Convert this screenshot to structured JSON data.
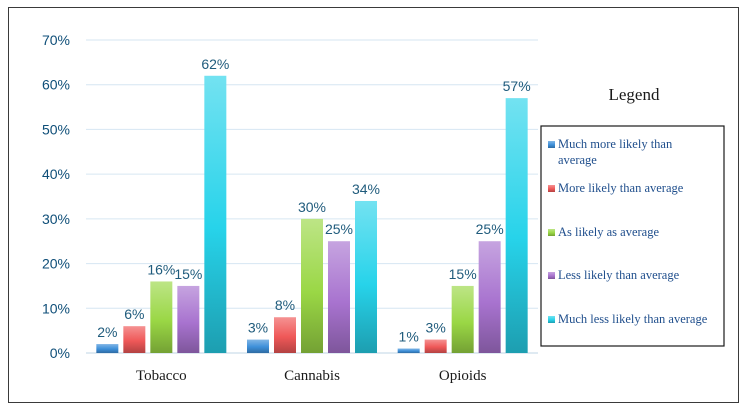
{
  "chart_data": {
    "type": "bar",
    "categories": [
      "Tobacco",
      "Cannabis",
      "Opioids"
    ],
    "ylim": [
      0,
      70
    ],
    "yticks": [
      0,
      10,
      20,
      30,
      40,
      50,
      60,
      70
    ],
    "y_tick_suffix": "%",
    "legend_title": "Legend",
    "legend_position": "right",
    "grid": true,
    "series": [
      {
        "name": "Much more likely than average",
        "values": [
          2,
          3,
          1
        ],
        "color": "#3d8fd9"
      },
      {
        "name": "More likely than average",
        "values": [
          6,
          8,
          3
        ],
        "color": "#ef5858"
      },
      {
        "name": "As likely as average",
        "values": [
          16,
          30,
          15
        ],
        "color": "#9ad745"
      },
      {
        "name": "Less likely than average",
        "values": [
          15,
          25,
          25
        ],
        "color": "#a873cf"
      },
      {
        "name": "Much less likely than average",
        "values": [
          62,
          34,
          57
        ],
        "color": "#27d3ea"
      }
    ],
    "legend_lines": [
      [
        "Much more likely than",
        "average"
      ],
      [
        "More likely than average"
      ],
      [
        "As likely as average"
      ],
      [
        "Less likely than average"
      ],
      [
        "Much less likely than average"
      ]
    ]
  }
}
